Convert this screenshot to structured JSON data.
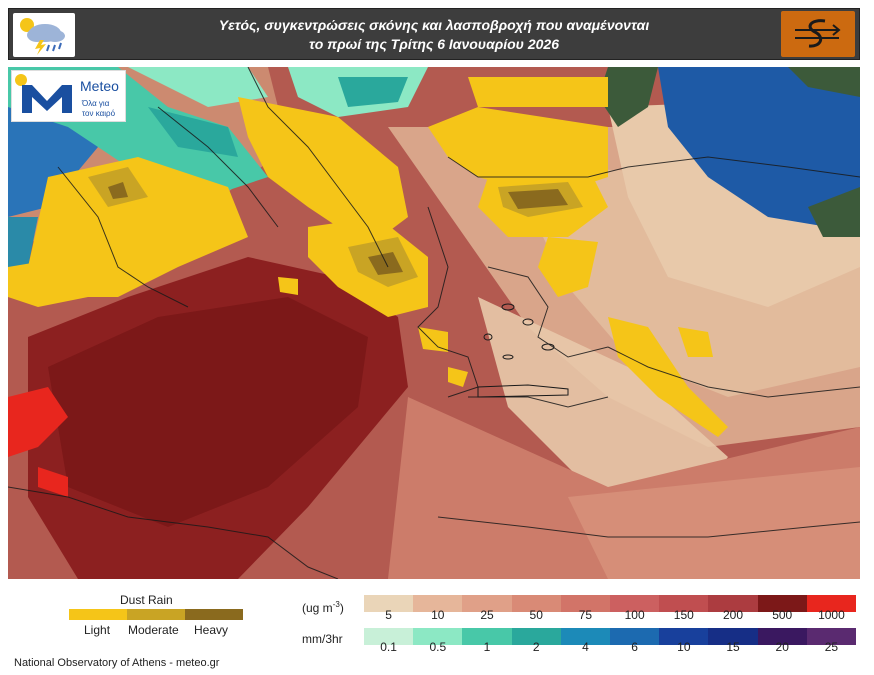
{
  "header": {
    "title_line1": "Υετός, συγκεντρώσεις σκόνης και λασποβροχή που αναμένονται",
    "title_line2": "το πρωί της Τρίτης 6 Ιανουαρίου 2026",
    "left_icon": "rain-cloud-lightning-icon",
    "right_icon": "cyclone-symbol-icon",
    "right_icon_bg": "#cc6a10"
  },
  "logo": {
    "name": "Meteo",
    "tagline_1": "Όλα για",
    "tagline_2": "τον καιρό",
    "color": "#1a4fa0"
  },
  "dust_rain_legend": {
    "title": "Dust Rain",
    "items": [
      {
        "label": "Light",
        "color": "#f5c518"
      },
      {
        "label": "Moderate",
        "color": "#c9a424"
      },
      {
        "label": "Heavy",
        "color": "#8a6a1e"
      }
    ]
  },
  "dust_scale": {
    "unit": "ug m",
    "unit_exp": "-3",
    "colors": [
      "#ead5b8",
      "#e6b69a",
      "#e0a088",
      "#d98a76",
      "#d27468",
      "#cc6060",
      "#c04e50",
      "#ac3c40",
      "#7c1818",
      "#e8261e"
    ],
    "labels": [
      "5",
      "10",
      "25",
      "50",
      "75",
      "100",
      "150",
      "200",
      "500",
      "1000"
    ]
  },
  "precip_scale": {
    "unit": "mm/3hr",
    "colors": [
      "#c8f0d8",
      "#8ce8c4",
      "#48c8a8",
      "#2aa89c",
      "#1c8ab8",
      "#1c6ab0",
      "#18409c",
      "#162e86",
      "#3a1860",
      "#5a2a70"
    ],
    "labels": [
      "0.1",
      "0.5",
      "1",
      "2",
      "4",
      "6",
      "10",
      "15",
      "20",
      "25"
    ]
  },
  "credit": "National Observatory of Athens - meteo.gr"
}
